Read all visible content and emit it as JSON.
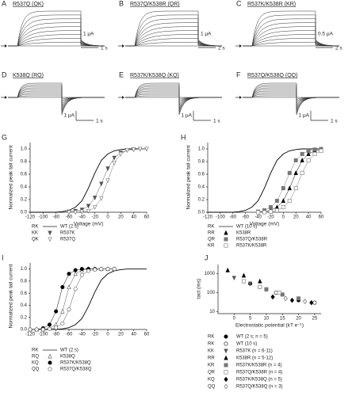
{
  "trace_panels": [
    {
      "letter": "A",
      "title": "R537Q (QK)",
      "current_scale": "1 μA",
      "time_scale": "1 s"
    },
    {
      "letter": "B",
      "title": "R537Q/K538R (QR)",
      "current_scale": "1 μA",
      "time_scale": "2 s"
    },
    {
      "letter": "C",
      "title": "R537K/K538R (KR)",
      "current_scale": "0.5 μA",
      "time_scale": "2 s"
    },
    {
      "letter": "D",
      "title": "K538Q (RQ)",
      "current_scale": "1 μA",
      "time_scale": "1 s"
    },
    {
      "letter": "E",
      "title": "R537K/K538Q (KQ)",
      "current_scale": "1 μA",
      "time_scale": "1 s"
    },
    {
      "letter": "F",
      "title": "R537Q/K538Q (QQ)",
      "current_scale": "1 μA",
      "time_scale": "1 s"
    }
  ],
  "chart_data": [
    {
      "type": "line",
      "letter": "G",
      "xlabel": "Voltage (mV)",
      "ylabel": "Normalized peak tail current",
      "xlim": [
        -120,
        60
      ],
      "xticks": [
        -120,
        -100,
        -80,
        -60,
        -40,
        -20,
        0,
        20,
        40,
        60
      ],
      "ylim": [
        0,
        1.1
      ],
      "yticks": [
        {
          "value": 0,
          "label": "0.0"
        },
        {
          "value": 0.2,
          "label": "0.2"
        },
        {
          "value": 0.4,
          "label": "0.4"
        },
        {
          "value": 0.6,
          "label": "0.6"
        },
        {
          "value": 0.8,
          "label": "0.8"
        },
        {
          "value": 1,
          "label": "1.0"
        }
      ],
      "series": [
        {
          "code": "RK",
          "name": "WT (2 s)",
          "color": "#000000",
          "marker": "line",
          "filled": true,
          "x": [
            -120,
            -110,
            -100,
            -90,
            -80,
            -70,
            -60,
            -50,
            -40,
            -30,
            -20,
            -10,
            0,
            10,
            20,
            30,
            40,
            50,
            60
          ],
          "values": [
            0,
            0,
            0,
            0,
            0,
            0.01,
            0.03,
            0.08,
            0.18,
            0.38,
            0.62,
            0.82,
            0.92,
            0.97,
            0.99,
            1,
            1,
            1,
            1
          ]
        },
        {
          "code": "KK",
          "name": "R537K",
          "color": "#555555",
          "marker": "triangle-down",
          "filled": true,
          "x": [
            -60,
            -50,
            -40,
            -30,
            -20,
            -10,
            0,
            10,
            20,
            30,
            40,
            50,
            60
          ],
          "values": [
            0.01,
            0.02,
            0.04,
            0.1,
            0.23,
            0.45,
            0.69,
            0.86,
            0.94,
            0.98,
            0.99,
            1,
            1
          ]
        },
        {
          "code": "QK",
          "name": "R537Q",
          "color": "#777777",
          "marker": "triangle-down",
          "filled": false,
          "x": [
            -60,
            -50,
            -40,
            -30,
            -20,
            -10,
            0,
            10,
            20,
            30,
            40,
            50,
            60
          ],
          "values": [
            0,
            0,
            0.01,
            0.02,
            0.08,
            0.22,
            0.5,
            0.78,
            0.92,
            0.98,
            0.99,
            1,
            1
          ]
        }
      ]
    },
    {
      "type": "line",
      "letter": "H",
      "xlabel": "Voltage (mV)",
      "ylabel": "Normalized peak tail current",
      "xlim": [
        -120,
        60
      ],
      "xticks": [
        -120,
        -100,
        -80,
        -60,
        -40,
        -20,
        0,
        20,
        40,
        60
      ],
      "ylim": [
        0,
        1.1
      ],
      "yticks": [
        {
          "value": 0,
          "label": "0.0"
        },
        {
          "value": 0.2,
          "label": "0.2"
        },
        {
          "value": 0.4,
          "label": "0.4"
        },
        {
          "value": 0.6,
          "label": "0.6"
        },
        {
          "value": 0.8,
          "label": "0.8"
        },
        {
          "value": 1,
          "label": "1.0"
        }
      ],
      "series": [
        {
          "code": "RK",
          "name": "WT (10 s)",
          "color": "#000000",
          "marker": "line",
          "filled": true,
          "x": [
            -120,
            -110,
            -100,
            -90,
            -80,
            -70,
            -60,
            -50,
            -40,
            -30,
            -20,
            -10,
            0,
            10,
            20,
            30,
            40,
            50,
            60
          ],
          "values": [
            0,
            0,
            0,
            0,
            0,
            0.01,
            0.03,
            0.08,
            0.18,
            0.38,
            0.62,
            0.82,
            0.92,
            0.97,
            0.99,
            1,
            1,
            1,
            1
          ]
        },
        {
          "code": "RR",
          "name": "K538R",
          "color": "#000000",
          "marker": "triangle",
          "filled": true,
          "x": [
            -40,
            -30,
            -20,
            -10,
            0,
            10,
            20,
            30,
            40,
            50,
            60
          ],
          "values": [
            0,
            0.01,
            0.03,
            0.08,
            0.18,
            0.38,
            0.62,
            0.82,
            0.92,
            0.97,
            0.99
          ]
        },
        {
          "code": "QR",
          "name": "R537Q/K538R",
          "color": "#777777",
          "marker": "square",
          "filled": true,
          "x": [
            -40,
            -30,
            -20,
            -10,
            0,
            10,
            20,
            30,
            40,
            50,
            60
          ],
          "values": [
            0.01,
            0.03,
            0.08,
            0.18,
            0.38,
            0.62,
            0.82,
            0.92,
            0.97,
            0.99,
            1
          ]
        },
        {
          "code": "KR",
          "name": "R537K/K538R",
          "color": "#777777",
          "marker": "square",
          "filled": false,
          "x": [
            -40,
            -30,
            -20,
            -10,
            0,
            10,
            20,
            30,
            40,
            50,
            60
          ],
          "values": [
            0,
            0,
            0.01,
            0.03,
            0.08,
            0.18,
            0.38,
            0.62,
            0.82,
            0.92,
            0.97
          ]
        }
      ]
    },
    {
      "type": "line",
      "letter": "I",
      "ylabel": "Normalized peak tail current",
      "xlim": [
        -120,
        60
      ],
      "xticks": [
        -120,
        -100,
        -80,
        -60,
        -40,
        -20,
        0,
        20,
        40,
        60
      ],
      "ylim": [
        0,
        1.1
      ],
      "yticks": [
        {
          "value": 0,
          "label": "0.0"
        },
        {
          "value": 0.2,
          "label": "0.2"
        },
        {
          "value": 0.4,
          "label": "0.4"
        },
        {
          "value": 0.6,
          "label": "0.6"
        },
        {
          "value": 0.8,
          "label": "0.8"
        },
        {
          "value": 1,
          "label": "1.0"
        }
      ],
      "series": [
        {
          "code": "RK",
          "name": "WT (2 s)",
          "color": "#000000",
          "marker": "line",
          "filled": true,
          "x": [
            -120,
            -110,
            -100,
            -90,
            -80,
            -70,
            -60,
            -50,
            -40,
            -30,
            -20,
            -10,
            0,
            10,
            20,
            30,
            40,
            50,
            60
          ],
          "values": [
            0,
            0,
            0,
            0,
            0,
            0.01,
            0.03,
            0.08,
            0.18,
            0.38,
            0.62,
            0.82,
            0.92,
            0.97,
            0.99,
            1,
            1,
            1,
            1
          ]
        },
        {
          "code": "RQ",
          "name": "K538Q",
          "color": "#555555",
          "marker": "triangle",
          "filled": false,
          "x": [
            -120,
            -110,
            -100,
            -90,
            -80,
            -70,
            -60,
            -50,
            -40,
            -30,
            -20,
            -10,
            0,
            10
          ],
          "values": [
            0,
            0,
            0,
            0.02,
            0.08,
            0.3,
            0.7,
            0.92,
            0.98,
            1,
            1,
            1,
            1,
            1
          ]
        },
        {
          "code": "KQ",
          "name": "R537K/K538Q",
          "color": "#000000",
          "marker": "circle",
          "filled": true,
          "x": [
            -120,
            -110,
            -100,
            -90,
            -80,
            -70,
            -60,
            -50,
            -40,
            -30,
            -20,
            -10,
            0,
            10
          ],
          "values": [
            0,
            0,
            0.02,
            0.08,
            0.3,
            0.7,
            0.92,
            0.98,
            1,
            1,
            1,
            1,
            1,
            1
          ]
        },
        {
          "code": "QQ",
          "name": "R537Q/K538Q",
          "color": "#555555",
          "marker": "circle",
          "filled": false,
          "x": [
            -120,
            -110,
            -100,
            -90,
            -80,
            -70,
            -60,
            -50,
            -40,
            -30,
            -20,
            -10,
            0,
            10
          ],
          "values": [
            0,
            0,
            0,
            0.01,
            0.03,
            0.1,
            0.33,
            0.67,
            0.9,
            0.97,
            0.99,
            1,
            1,
            1
          ]
        }
      ]
    },
    {
      "type": "scatter",
      "letter": "J",
      "xlabel": "Electrostatic potential (kT e⁻¹)",
      "ylabel": "τact (ms)",
      "log_y": true,
      "xlim": [
        -5,
        27
      ],
      "xticks": [
        0,
        5,
        10,
        15,
        20,
        25
      ],
      "ylim": [
        8,
        3000
      ],
      "yticks": [
        10,
        100,
        1000
      ],
      "series": [
        {
          "code": "RK",
          "name": "WT (2 s; n = 5)",
          "color": "#000000",
          "marker": "circle",
          "filled": true,
          "x": [
            5,
            10,
            15,
            20
          ],
          "values": [
            300,
            150,
            80,
            40
          ]
        },
        {
          "code": "RK",
          "name": "WT (10 s)",
          "color": "#000000",
          "marker": "circle",
          "filled": false,
          "x": [
            8,
            13,
            20,
            25
          ],
          "values": [
            200,
            100,
            50,
            30
          ]
        },
        {
          "code": "KK",
          "name": "R537K (n = 6-11)",
          "color": "#555555",
          "marker": "triangle-down",
          "filled": true,
          "x": [
            0,
            5,
            10
          ],
          "values": [
            600,
            300,
            150
          ]
        },
        {
          "code": "RR",
          "name": "K538R (n = 5-12)",
          "color": "#000000",
          "marker": "triangle",
          "filled": true,
          "x": [
            -2,
            3,
            8
          ],
          "values": [
            1500,
            800,
            400
          ]
        },
        {
          "code": "KR",
          "name": "R537K/K538R (n = 4)",
          "color": "#777777",
          "marker": "square",
          "filled": true,
          "x": [
            10,
            15,
            20
          ],
          "values": [
            150,
            80,
            50
          ]
        },
        {
          "code": "QR",
          "name": "R537Q/K538R (n = 4)",
          "color": "#777777",
          "marker": "square",
          "filled": false,
          "x": [
            3,
            8,
            14
          ],
          "values": [
            400,
            200,
            100
          ]
        },
        {
          "code": "KQ",
          "name": "R537K/K538Q (n = 5)",
          "color": "#000000",
          "marker": "diamond",
          "filled": true,
          "x": [
            12,
            18,
            24
          ],
          "values": [
            60,
            40,
            30
          ]
        },
        {
          "code": "QQ",
          "name": "R537Q/K538Q (n = 3)",
          "color": "#555555",
          "marker": "diamond",
          "filled": false,
          "x": [
            16,
            22
          ],
          "values": [
            50,
            35
          ]
        }
      ]
    }
  ]
}
